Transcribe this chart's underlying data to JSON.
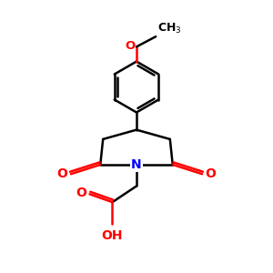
{
  "bg_color": "#ffffff",
  "line_color": "#000000",
  "nitrogen_color": "#0000ff",
  "oxygen_color": "#ff0000",
  "line_width": 1.8,
  "figsize": [
    3.0,
    3.0
  ],
  "dpi": 100,
  "xlim": [
    0,
    10
  ],
  "ylim": [
    0,
    10
  ]
}
